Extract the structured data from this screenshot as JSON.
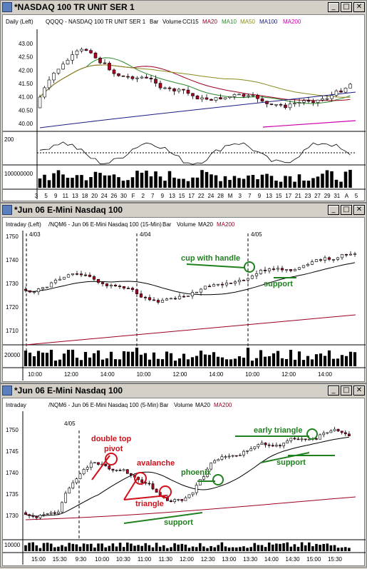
{
  "colors": {
    "up": "#ffffff",
    "down": "#b00020",
    "ma20": "#9a0020",
    "ma10": "#2a8a2a",
    "ma50": "#8a8a20",
    "ma100": "#1a1a80",
    "ma200": "#cc00aa",
    "annot_red": "#d0101a",
    "annot_green": "#208020"
  },
  "win1": {
    "title": "*NASDAQ 100 TR UNIT SER 1",
    "info": {
      "period": "Daily  (Left)",
      "symbol": "QQQQ - NASDAQ 100 TR UNIT SER 1",
      "type": "Bar",
      "vol": "Volume",
      "cci": "CCI15",
      "ma20": "MA20",
      "ma10": "MA10",
      "ma50": "MA50",
      "ma100": "MA100",
      "ma200": "MA200"
    },
    "yticks": [
      "43.00",
      "42.50",
      "42.00",
      "41.50",
      "41.00",
      "40.50",
      "40.00"
    ],
    "cci_tick": "200",
    "vol_tick": "100000000",
    "xticks": [
      "3",
      "5",
      "9",
      "11",
      "13",
      "18",
      "20",
      "24",
      "26",
      "30",
      "F",
      "2",
      "7",
      "9",
      "13",
      "15",
      "17",
      "22",
      "24",
      "28",
      "M",
      "3",
      "7",
      "9",
      "13",
      "15",
      "17",
      "21",
      "23",
      "27",
      "29",
      "31",
      "A",
      "5"
    ]
  },
  "win2": {
    "title": "*Jun 06  E-Mini Nasdaq 100",
    "info": {
      "period": "Intraday  (Left)",
      "symbol": "/NQM6 - Jun 06 E-Mini Nasdaq 100 (15-Min)",
      "type": "Bar",
      "vol": "Volume",
      "ma20": "MA20",
      "ma200": "MA200"
    },
    "yticks": [
      "1750",
      "1740",
      "1730",
      "1720",
      "1710"
    ],
    "vol_tick": "20000",
    "dates": [
      "4/03",
      "4/04",
      "4/05"
    ],
    "xticks": [
      "10:00",
      "12:00",
      "14:00",
      "10:00",
      "12:00",
      "14:00",
      "10:00",
      "12:00",
      "14:00"
    ],
    "annotations": {
      "cup": "cup with handle",
      "support": "support"
    }
  },
  "win3": {
    "title": "*Jun 06  E-Mini Nasdaq 100",
    "info": {
      "period": "Intraday",
      "symbol": "/NQM6 - Jun 06 E-Mini Nasdaq 100 (5-Min)",
      "type": "Bar",
      "vol": "Volume",
      "ma20": "MA20",
      "ma200": "MA200"
    },
    "yticks": [
      "1750",
      "1745",
      "1740",
      "1735",
      "1730"
    ],
    "vol_tick": "10000",
    "date": "4/05",
    "xticks": [
      "15:00",
      "15:30",
      "9:30",
      "10:00",
      "10:30",
      "11:00",
      "11:30",
      "12:00",
      "12:30",
      "13:00",
      "13:30",
      "14:00",
      "14:30",
      "15:00",
      "15:30"
    ],
    "annotations": {
      "double_top": "double top",
      "pivot": "pivot",
      "avalanche": "avalanche",
      "triangle": "triangle",
      "phoenix": "phoenix",
      "support1": "support",
      "early_triangle": "early triangle",
      "support2": "support"
    }
  }
}
